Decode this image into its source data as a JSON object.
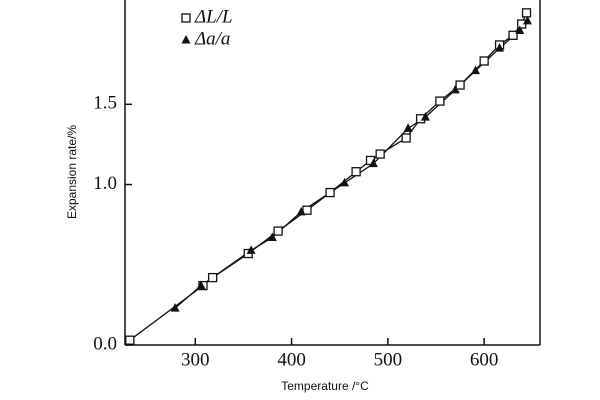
{
  "chart_data": {
    "type": "scatter",
    "x_label": "Temperature /°C",
    "y_label": "Expansion rate/%",
    "xlim": [
      227,
      658
    ],
    "ylim": [
      0,
      2.15
    ],
    "xticks": [
      300,
      400,
      500,
      600
    ],
    "yticks": [
      {
        "value": 0,
        "label": "0.0"
      },
      {
        "value": 1,
        "label": "1.0"
      },
      {
        "value": 1.5,
        "label": "1.5"
      }
    ],
    "series": [
      {
        "name": "ΔL/L",
        "marker": "square",
        "color": "#111111",
        "x": [
          232,
          308,
          318,
          355,
          386,
          416,
          440,
          467,
          482,
          492,
          519,
          534,
          554,
          575,
          600,
          616,
          630,
          639,
          644
        ],
        "values": [
          0.03,
          0.37,
          0.42,
          0.57,
          0.71,
          0.84,
          0.95,
          1.08,
          1.15,
          1.19,
          1.29,
          1.41,
          1.52,
          1.62,
          1.77,
          1.87,
          1.93,
          2.0,
          2.07
        ]
      },
      {
        "name": "Δa/a",
        "marker": "triangle",
        "color": "#111111",
        "x": [
          279,
          306,
          358,
          380,
          410,
          455,
          485,
          521,
          539,
          570,
          591,
          616,
          637,
          645
        ],
        "values": [
          0.23,
          0.37,
          0.59,
          0.67,
          0.83,
          1.01,
          1.13,
          1.35,
          1.42,
          1.59,
          1.71,
          1.85,
          1.96,
          2.02
        ]
      }
    ]
  }
}
